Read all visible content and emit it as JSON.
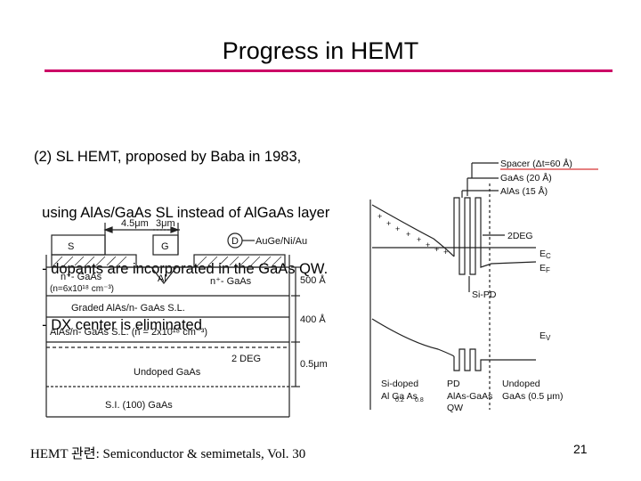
{
  "slide": {
    "title": "Progress in HEMT",
    "accent_color": "#cc0066",
    "lines": [
      "(2) SL HEMT, proposed by Baba in 1983,",
      "  using AlAs/GaAs SL instead of AlGaAs layer",
      "  - dopants are incorporated in the GaAs QW.",
      "  - DX center is eliminated"
    ],
    "footer": "HEMT 관련: Semiconductor & semimetals, Vol. 30",
    "page_number": "21"
  },
  "device_figure": {
    "terminals": {
      "source": "S",
      "gate": "G",
      "drain": "D"
    },
    "gate_spacing": "4.5μm",
    "gate_length": "3μm",
    "contact_metal": "AuGe/Ni/Au",
    "gate_metal": "Al",
    "layers": {
      "cap_left": "n⁺- GaAs",
      "cap_left_doping": "(n=6x10¹⁸ cm⁻³)",
      "cap_right": "n⁺- GaAs",
      "graded": "Graded  AlAs/n- GaAs  S.L.",
      "sl": "AlAs/n- GaAs  S.L.  (n̄ = 2x10¹⁸ cm⁻³)",
      "undoped": "Undoped  GaAs",
      "substrate": "S.I. (100)  GaAs"
    },
    "thicknesses": {
      "cap": "500 Å",
      "sl": "400 Å",
      "buffer": "0.5μm"
    },
    "channel": "2 DEG"
  },
  "band_figure": {
    "top_labels": [
      "Spacer (Δt=60 Å)",
      "GaAs  (20 Å)",
      "AlAs  (15 Å)"
    ],
    "labels": {
      "deg": "2DEG",
      "ec": "E",
      "ec_sub": "C",
      "ef": "E",
      "ef_sub": "F",
      "sipd": "Si-PD",
      "ev": "E",
      "ev_sub": "V"
    },
    "bottom_labels": {
      "sidoped_1": "Si-doped",
      "sidoped_2": "Al  Ga   As",
      "sidoped_sub1": "0.2",
      "sidoped_sub2": "0.8",
      "pd_1": "PD",
      "pd_2": "AlAs-GaAs",
      "pd_3": "QW",
      "undoped_1": "Undoped",
      "undoped_2": "GaAs (0.5 μm)"
    }
  }
}
